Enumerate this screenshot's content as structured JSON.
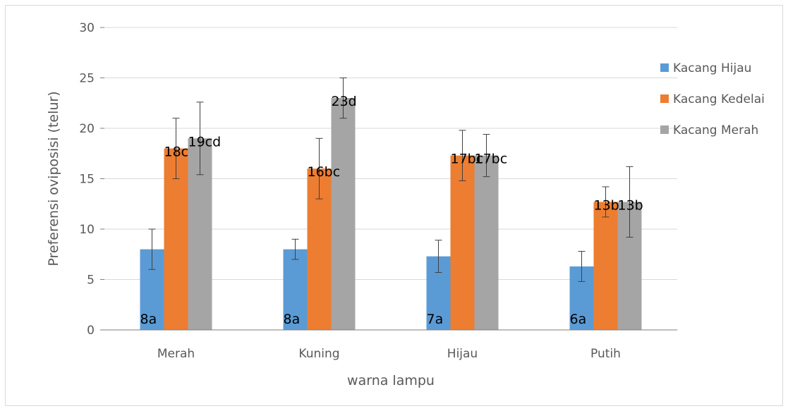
{
  "chart_data": {
    "type": "bar",
    "title": "",
    "xlabel": "warna lampu",
    "ylabel": "Preferensi oviposisi (telur)",
    "ylim": [
      0,
      30
    ],
    "yticks": [
      0,
      5,
      10,
      15,
      20,
      25,
      30
    ],
    "grid": true,
    "legend_position": "right",
    "categories": [
      "Merah",
      "Kuning",
      "Hijau",
      "Putih"
    ],
    "series": [
      {
        "name": "Kacang Hijau",
        "color": "#5b9bd5",
        "values": [
          8,
          8,
          7.3,
          6.3
        ],
        "errors": [
          2,
          1,
          1.6,
          1.5
        ],
        "labels": [
          "8a",
          "8a",
          "7a",
          "6a"
        ]
      },
      {
        "name": "Kacang Kedelai",
        "color": "#ed7d31",
        "values": [
          18,
          16,
          17.3,
          12.7
        ],
        "errors": [
          3,
          3,
          2.5,
          1.5
        ],
        "labels": [
          "18c",
          "16bc",
          "17bc",
          "13b"
        ]
      },
      {
        "name": "Kacang Merah",
        "color": "#a5a5a5",
        "values": [
          19,
          23,
          17.3,
          12.7
        ],
        "errors": [
          3.6,
          2,
          2.1,
          3.5
        ],
        "labels": [
          "19cd",
          "23d",
          "17bc",
          "13b"
        ]
      }
    ]
  }
}
